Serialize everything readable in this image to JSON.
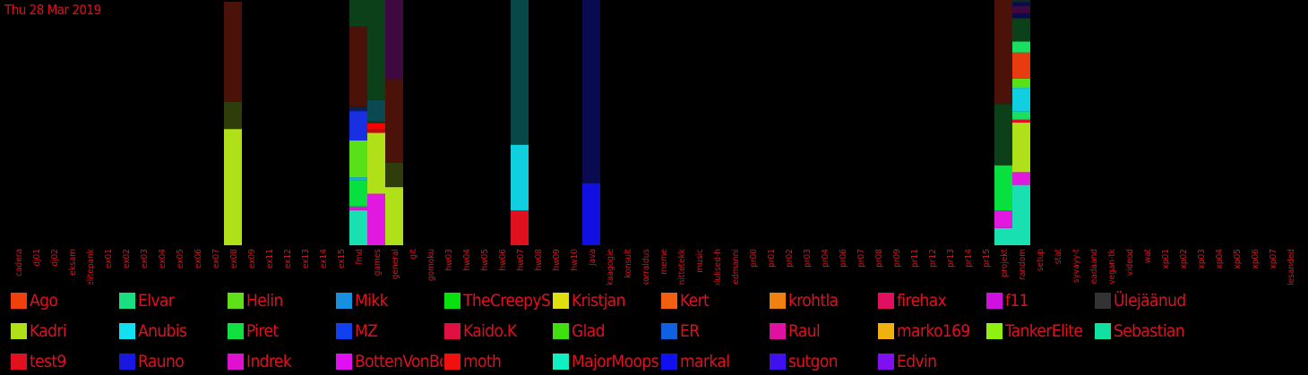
{
  "header": {
    "date": "Thu 28 Mar 2019"
  },
  "chart_data": {
    "type": "bar",
    "stacked": true,
    "ylim": [
      0,
      1
    ],
    "text_color": "#e0101e",
    "categories": [
      "cadera",
      "dj01",
      "dj02",
      "eksam",
      "elitepank",
      "ex01",
      "ex02",
      "ex03",
      "ex04",
      "ex05",
      "ex06",
      "ex07",
      "ex08",
      "ex09",
      "ex11",
      "ex12",
      "ex13",
      "ex14",
      "ex15",
      "fmd",
      "games",
      "general",
      "git",
      "gomoku",
      "hw03",
      "hw04",
      "hw05",
      "hw06",
      "hw07",
      "hw08",
      "hw09",
      "hw10",
      "java",
      "kaagogie",
      "konsult",
      "korraldus",
      "meme",
      "mittetekk",
      "music",
      "olulised-h",
      "pedmanni",
      "pr00",
      "pr01",
      "pr02",
      "pr03",
      "pr04",
      "pr06",
      "pr07",
      "pr08",
      "pr09",
      "pr11",
      "pr12",
      "pr13",
      "pr14",
      "pr15",
      "projekt",
      "random",
      "setup",
      "stat",
      "syvayy-t",
      "teadaand",
      "vegan-tk",
      "videod",
      "wat",
      "xp01",
      "xp02",
      "xp03",
      "xp04",
      "xp05",
      "xp06",
      "xp07",
      "ülesanded"
    ],
    "bars": [
      {
        "category": "ex08",
        "segments": [
          {
            "color": "#b0e018",
            "value": 0.474
          },
          {
            "color": "#2e3d0a",
            "value": 0.11
          },
          {
            "color": "#4a1208",
            "value": 0.409
          }
        ]
      },
      {
        "category": "fmd",
        "segments": [
          {
            "color": "#18e0b0",
            "value": 0.143
          },
          {
            "color": "#d818d8",
            "value": 0.015
          },
          {
            "color": "#08e040",
            "value": 0.107
          },
          {
            "color": "#18b0d0",
            "value": 0.012
          },
          {
            "color": "#58e018",
            "value": 0.15
          },
          {
            "color": "#1830e0",
            "value": 0.12
          },
          {
            "color": "#0a2050",
            "value": 0.018
          },
          {
            "color": "#4a1208",
            "value": 0.326
          },
          {
            "color": "#0c4018",
            "value": 0.109
          }
        ]
      },
      {
        "category": "games",
        "segments": [
          {
            "color": "#e018e0",
            "value": 0.21
          },
          {
            "color": "#b0e018",
            "value": 0.248
          },
          {
            "color": "#c00a10",
            "value": 0.015
          },
          {
            "color": "#ff0000",
            "value": 0.025
          },
          {
            "color": "#1a3020",
            "value": 0.006
          },
          {
            "color": "#0c4850",
            "value": 0.088
          },
          {
            "color": "#0c4018",
            "value": 0.408
          }
        ]
      },
      {
        "category": "general",
        "segments": [
          {
            "color": "#b0e018",
            "value": 0.237
          },
          {
            "color": "#2e3d0a",
            "value": 0.1
          },
          {
            "color": "#4a1208",
            "value": 0.34
          },
          {
            "color": "#400840",
            "value": 0.323
          }
        ]
      },
      {
        "category": "hw07",
        "segments": [
          {
            "color": "#e0101e",
            "value": 0.142
          },
          {
            "color": "#10d0e0",
            "value": 0.268
          },
          {
            "color": "#084848",
            "value": 0.59
          }
        ]
      },
      {
        "category": "java",
        "segments": [
          {
            "color": "#1010e0",
            "value": 0.253
          },
          {
            "color": "#0a0a50",
            "value": 0.747
          }
        ]
      },
      {
        "category": "projekt",
        "segments": [
          {
            "color": "#18e0b0",
            "value": 0.07
          },
          {
            "color": "#e018e0",
            "value": 0.072
          },
          {
            "color": "#08e040",
            "value": 0.184
          },
          {
            "color": "#0c4018",
            "value": 0.25
          },
          {
            "color": "#4a1208",
            "value": 0.424
          }
        ]
      },
      {
        "category": "random",
        "segments": [
          {
            "color": "#18e0b0",
            "value": 0.246
          },
          {
            "color": "#e018e0",
            "value": 0.052
          },
          {
            "color": "#b0e018",
            "value": 0.202
          },
          {
            "color": "#e0101e",
            "value": 0.012
          },
          {
            "color": "#18e060",
            "value": 0.033
          },
          {
            "color": "#10d0e0",
            "value": 0.097
          },
          {
            "color": "#58e018",
            "value": 0.037
          },
          {
            "color": "#e83c10",
            "value": 0.107
          },
          {
            "color": "#18e060",
            "value": 0.045
          },
          {
            "color": "#0c4018",
            "value": 0.095
          },
          {
            "color": "#0a0a50",
            "value": 0.02
          },
          {
            "color": "#400840",
            "value": 0.03
          },
          {
            "color": "#0a0a50",
            "value": 0.015
          },
          {
            "color": "#102820",
            "value": 0.01
          }
        ]
      }
    ],
    "legend": [
      {
        "name": "Ago",
        "color": "#f0400c"
      },
      {
        "name": "Elvar",
        "color": "#18e080"
      },
      {
        "name": "Helin",
        "color": "#60e018"
      },
      {
        "name": "Mikk",
        "color": "#1890e0"
      },
      {
        "name": "TheCreepySh",
        "color": "#08e010"
      },
      {
        "name": "Kristjan",
        "color": "#e0e010"
      },
      {
        "name": "Kert",
        "color": "#f06010"
      },
      {
        "name": "krohtla",
        "color": "#f08010"
      },
      {
        "name": "firehax",
        "color": "#e01060"
      },
      {
        "name": "f11",
        "color": "#d010e0"
      },
      {
        "name": "Ülejäänud",
        "color": "#333333"
      },
      {
        "name": "Kadri",
        "color": "#b0e018"
      },
      {
        "name": "Anubis",
        "color": "#10e0f0"
      },
      {
        "name": "Piret",
        "color": "#10e040"
      },
      {
        "name": "MZ",
        "color": "#1040f0"
      },
      {
        "name": "Kaido.K",
        "color": "#e01040"
      },
      {
        "name": "Glad",
        "color": "#40e010"
      },
      {
        "name": "ER",
        "color": "#1060e0"
      },
      {
        "name": "Raul",
        "color": "#e010a0"
      },
      {
        "name": "marko169",
        "color": "#f0b010"
      },
      {
        "name": "TankerElite",
        "color": "#90f010"
      },
      {
        "name": "Sebastian",
        "color": "#10e0a0"
      },
      {
        "name": "test9",
        "color": "#e01020"
      },
      {
        "name": "Rauno",
        "color": "#1818e0"
      },
      {
        "name": "Indrek",
        "color": "#e010d0"
      },
      {
        "name": "BottenVonBot",
        "color": "#e010f0"
      },
      {
        "name": "moth",
        "color": "#f01010"
      },
      {
        "name": "MajorMoopsy",
        "color": "#10f0c0"
      },
      {
        "name": "markal",
        "color": "#1010f0"
      },
      {
        "name": "sutgon",
        "color": "#4010f0"
      },
      {
        "name": "Edvin",
        "color": "#8010f0"
      }
    ]
  }
}
